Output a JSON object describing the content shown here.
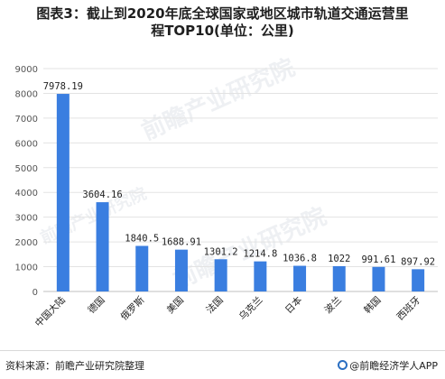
{
  "title": {
    "line1": "图表3：截止到2020年底全球国家或地区城市轨道交通运营里",
    "line2": "程TOP10(单位：公里)"
  },
  "watermarks": [
    "前瞻产业研究院",
    "前瞻产业研究院",
    "前瞻产业研究院"
  ],
  "footer": {
    "source": "资料来源：前瞻产业研究院整理",
    "brand": "@前瞻经济学人APP"
  },
  "colors": {
    "bar": "#3a7ee0",
    "grid": "#e3e3e3",
    "axis_text": "#555555",
    "label_text": "#222222"
  },
  "chart_data": {
    "type": "bar",
    "title": "图表3：截止到2020年底全球国家或地区城市轨道交通运营里程TOP10(单位：公里)",
    "categories": [
      "中国大陆",
      "德国",
      "俄罗斯",
      "美国",
      "法国",
      "乌克兰",
      "日本",
      "波兰",
      "韩国",
      "西班牙"
    ],
    "values": [
      7978.19,
      3604.16,
      1840.5,
      1688.91,
      1301.2,
      1214.8,
      1036.8,
      1022,
      991.61,
      897.92
    ],
    "value_labels": [
      "7978.19",
      "3604.16",
      "1840.5",
      "1688.91",
      "1301.2",
      "1214.8",
      "1036.8",
      "1022",
      "991.61",
      "897.92"
    ],
    "ylim": [
      0,
      9000
    ],
    "yticks": [
      0,
      1000,
      2000,
      3000,
      4000,
      5000,
      6000,
      7000,
      8000,
      9000
    ],
    "grid": true,
    "legend": "none"
  }
}
